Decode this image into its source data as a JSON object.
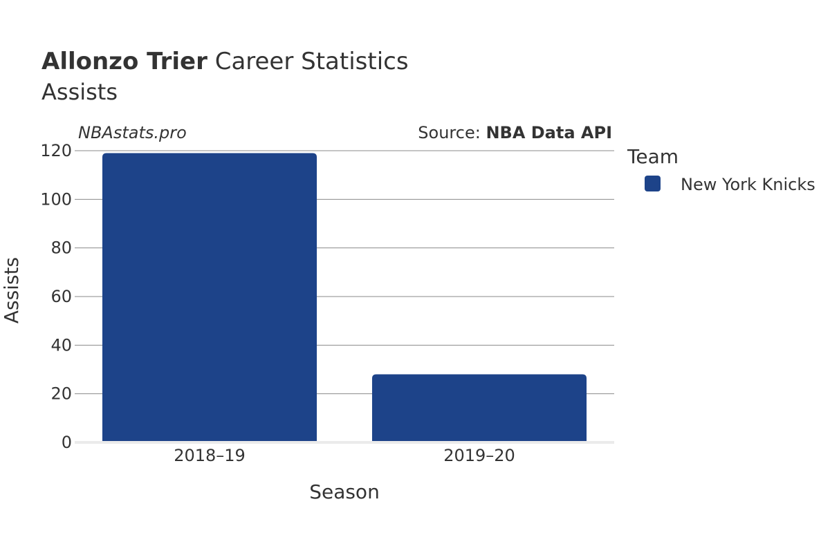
{
  "header": {
    "player_name": "Allonzo Trier",
    "title_rest": " Career Statistics",
    "subtitle": "Assists"
  },
  "watermark": "NBAstats.pro",
  "source": {
    "prefix": "Source: ",
    "name": "NBA Data API"
  },
  "legend": {
    "title": "Team",
    "items": [
      {
        "label": "New York Knicks",
        "color": "#1d4389"
      }
    ]
  },
  "chart_data": {
    "type": "bar",
    "categories": [
      "2018–19",
      "2019–20"
    ],
    "series": [
      {
        "name": "New York Knicks",
        "values": [
          119,
          28
        ],
        "color": "#1d4389"
      }
    ],
    "xlabel": "Season",
    "ylabel": "Assists",
    "ylim": [
      0,
      120
    ],
    "yticks": [
      0,
      20,
      40,
      60,
      80,
      100,
      120
    ],
    "grid": true,
    "legend_position": "right"
  }
}
